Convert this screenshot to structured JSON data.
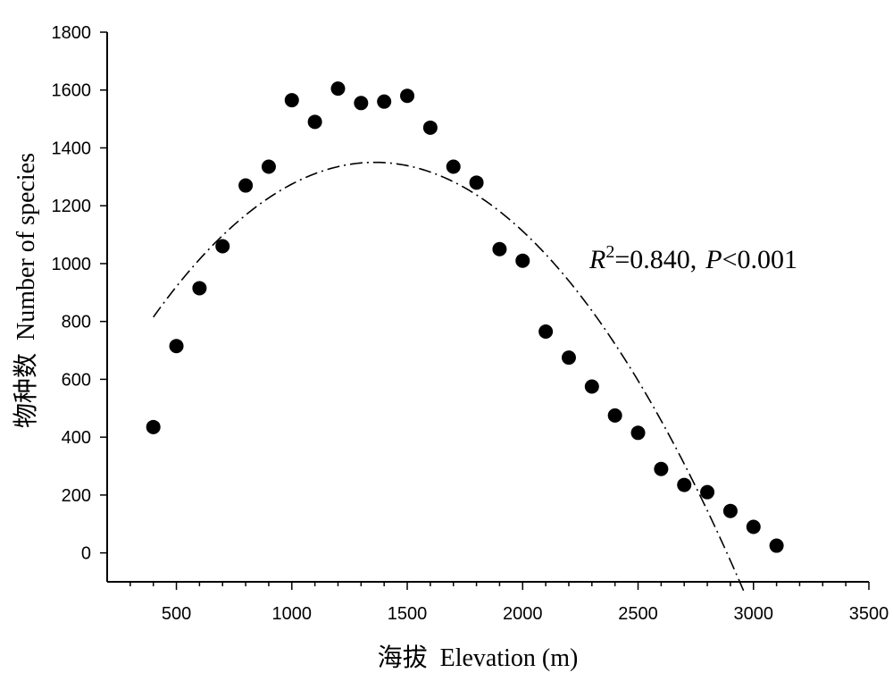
{
  "chart_data": {
    "type": "scatter",
    "xlabel": "海拔  Elevation (m)",
    "ylabel": "物种数  Number of species",
    "xlim": [
      200,
      3500
    ],
    "ylim": [
      -100,
      1800
    ],
    "x_ticks": [
      500,
      1000,
      1500,
      2000,
      2500,
      3000,
      3500
    ],
    "y_ticks": [
      0,
      200,
      400,
      600,
      800,
      1000,
      1200,
      1400,
      1600,
      1800
    ],
    "grid": false,
    "series": [
      {
        "points": [
          {
            "x": 400,
            "y": 435
          },
          {
            "x": 500,
            "y": 715
          },
          {
            "x": 600,
            "y": 915
          },
          {
            "x": 700,
            "y": 1060
          },
          {
            "x": 800,
            "y": 1270
          },
          {
            "x": 900,
            "y": 1335
          },
          {
            "x": 1000,
            "y": 1565
          },
          {
            "x": 1100,
            "y": 1490
          },
          {
            "x": 1200,
            "y": 1605
          },
          {
            "x": 1300,
            "y": 1555
          },
          {
            "x": 1400,
            "y": 1560
          },
          {
            "x": 1500,
            "y": 1580
          },
          {
            "x": 1600,
            "y": 1470
          },
          {
            "x": 1700,
            "y": 1335
          },
          {
            "x": 1800,
            "y": 1280
          },
          {
            "x": 1900,
            "y": 1050
          },
          {
            "x": 2000,
            "y": 1010
          },
          {
            "x": 2100,
            "y": 765
          },
          {
            "x": 2200,
            "y": 675
          },
          {
            "x": 2300,
            "y": 575
          },
          {
            "x": 2400,
            "y": 475
          },
          {
            "x": 2500,
            "y": 415
          },
          {
            "x": 2600,
            "y": 290
          },
          {
            "x": 2700,
            "y": 235
          },
          {
            "x": 2800,
            "y": 210
          },
          {
            "x": 2900,
            "y": 145
          },
          {
            "x": 3000,
            "y": 90
          },
          {
            "x": 3100,
            "y": 25
          }
        ]
      }
    ],
    "fit_curve": {
      "style": "dash-dot",
      "model": "quadratic",
      "vertex_x": 1360,
      "vertex_y": 1350,
      "passes_through": {
        "x": 400,
        "y": 815
      },
      "x_range": [
        400,
        2960
      ]
    },
    "annotation": {
      "r_symbol": "R",
      "r_exponent": "2",
      "r_value": "=0.840,",
      "p_symbol": "P",
      "p_value": "<0.001"
    }
  }
}
